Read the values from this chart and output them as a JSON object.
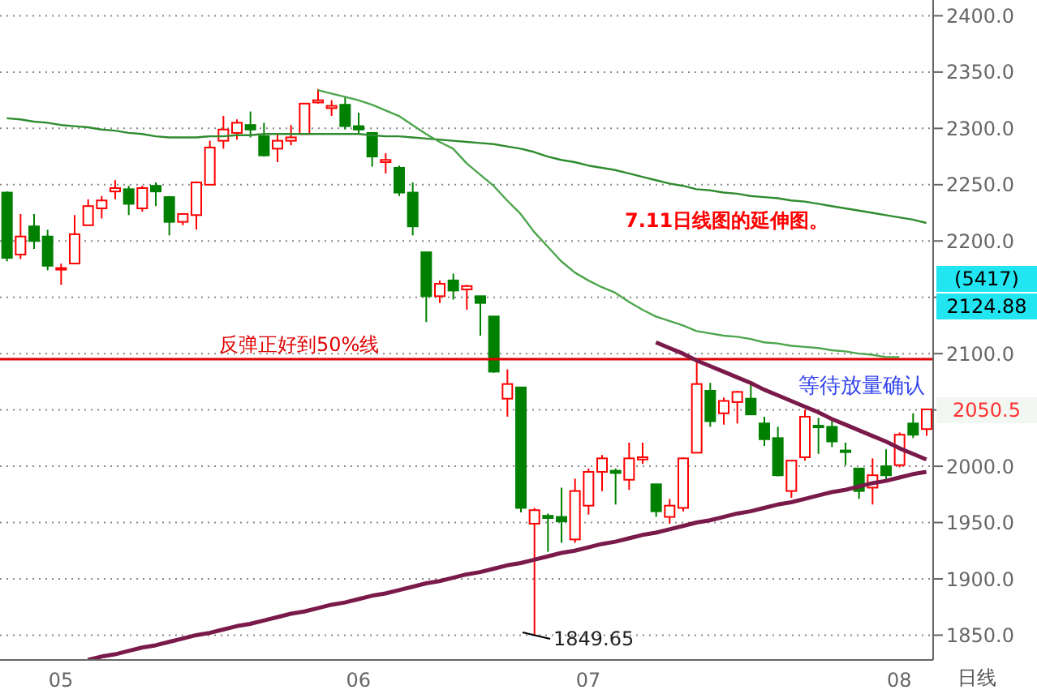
{
  "chart_data": {
    "type": "candlestick",
    "categories": [
      null,
      null,
      null,
      null,
      "05",
      null,
      null,
      null,
      null,
      null,
      null,
      null,
      null,
      null,
      null,
      null,
      null,
      null,
      null,
      null,
      null,
      null,
      null,
      null,
      null,
      null,
      "06",
      null,
      null,
      null,
      null,
      null,
      null,
      null,
      null,
      null,
      null,
      null,
      null,
      null,
      null,
      null,
      null,
      "07",
      null,
      null,
      null,
      null,
      null,
      null,
      null,
      null,
      null,
      null,
      null,
      null,
      null,
      null,
      null,
      null,
      null,
      null,
      null,
      null,
      null,
      null,
      "08",
      null,
      null
    ],
    "ohlc": [
      [
        2243,
        2244,
        2182,
        2185
      ],
      [
        2188,
        2224,
        2184,
        2204
      ],
      [
        2213,
        2224,
        2193,
        2200
      ],
      [
        2204,
        2210,
        2174,
        2178
      ],
      [
        2175,
        2180,
        2161,
        2176
      ],
      [
        2180,
        2223,
        2180,
        2206
      ],
      [
        2214,
        2237,
        2214,
        2231
      ],
      [
        2229,
        2240,
        2220,
        2236
      ],
      [
        2244,
        2254,
        2237,
        2247
      ],
      [
        2246,
        2249,
        2223,
        2233
      ],
      [
        2229,
        2249,
        2226,
        2247
      ],
      [
        2249,
        2252,
        2231,
        2244
      ],
      [
        2239,
        2240,
        2205,
        2217
      ],
      [
        2217,
        2224,
        2214,
        2224
      ],
      [
        2223,
        2253,
        2210,
        2252
      ],
      [
        2250,
        2289,
        2250,
        2283
      ],
      [
        2289,
        2311,
        2282,
        2299
      ],
      [
        2296,
        2308,
        2290,
        2305
      ],
      [
        2303,
        2315,
        2292,
        2299
      ],
      [
        2293,
        2305,
        2275,
        2276
      ],
      [
        2282,
        2295,
        2270,
        2289
      ],
      [
        2289,
        2303,
        2285,
        2292
      ],
      [
        2295,
        2322,
        2295,
        2322
      ],
      [
        2323,
        2335,
        2322,
        2325
      ],
      [
        2318,
        2325,
        2311,
        2320
      ],
      [
        2321,
        2328,
        2299,
        2302
      ],
      [
        2302,
        2314,
        2295,
        2299
      ],
      [
        2296,
        2296,
        2266,
        2275
      ],
      [
        2270,
        2278,
        2260,
        2272
      ],
      [
        2265,
        2267,
        2240,
        2243
      ],
      [
        2243,
        2252,
        2205,
        2213
      ],
      [
        2190,
        2190,
        2128,
        2151
      ],
      [
        2151,
        2165,
        2145,
        2162
      ],
      [
        2165,
        2171,
        2148,
        2156
      ],
      [
        2157,
        2161,
        2139,
        2160
      ],
      [
        2151,
        2151,
        2116,
        2145
      ],
      [
        2133,
        2133,
        2083,
        2084
      ],
      [
        2060,
        2086,
        2044,
        2073
      ],
      [
        2070,
        2070,
        1959,
        1963
      ],
      [
        1949,
        1963,
        1849.65,
        1961
      ],
      [
        1956,
        1958,
        1924,
        1954
      ],
      [
        1955,
        1981,
        1932,
        1951
      ],
      [
        1935,
        1989,
        1932,
        1978
      ],
      [
        1965,
        1998,
        1957,
        1995
      ],
      [
        1995,
        2010,
        1978,
        2007
      ],
      [
        1996,
        1998,
        1966,
        1994
      ],
      [
        1988,
        2021,
        1979,
        2007
      ],
      [
        2006,
        2021,
        2002,
        2008
      ],
      [
        1984,
        1984,
        1955,
        1960
      ],
      [
        1955,
        1971,
        1949,
        1965
      ],
      [
        1963,
        2008,
        1960,
        2007
      ],
      [
        2012,
        2095,
        2012,
        2073
      ],
      [
        2067,
        2074,
        2035,
        2040
      ],
      [
        2047,
        2061,
        2037,
        2058
      ],
      [
        2057,
        2067,
        2038,
        2066
      ],
      [
        2060,
        2073,
        2046,
        2046
      ],
      [
        2038,
        2044,
        2018,
        2024
      ],
      [
        2025,
        2035,
        1991,
        1992
      ],
      [
        1978,
        2005,
        1972,
        2005
      ],
      [
        2008,
        2050,
        2005,
        2044
      ],
      [
        2036,
        2043,
        2011,
        2035
      ],
      [
        2035,
        2041,
        2017,
        2022
      ],
      [
        2014,
        2021,
        2001,
        2013
      ],
      [
        1998,
        1998,
        1971,
        1978
      ],
      [
        1981,
        2007,
        1966,
        1992
      ],
      [
        2000,
        2015,
        1988,
        1992
      ],
      [
        2001,
        2030,
        1999,
        2028
      ],
      [
        2038,
        2047,
        2025,
        2028
      ],
      [
        2033,
        2050.5,
        2027,
        2050.5
      ]
    ],
    "series": [
      {
        "type": "line",
        "color": "#2e8b2e",
        "values": [
          2309,
          2308,
          2306,
          2305,
          2303,
          2302,
          2301,
          2299,
          2298,
          2296,
          2295,
          2293,
          2292,
          2292,
          2292,
          2293,
          2293,
          2294,
          2294,
          2295,
          2295,
          2295,
          2295,
          2295,
          2295,
          2295,
          2295,
          2294,
          2293,
          2293,
          2292,
          2291,
          2290,
          2289,
          2288,
          2287,
          2286,
          2284,
          2282,
          2279,
          2275,
          2272,
          2270,
          2267,
          2265,
          2263,
          2260,
          2257,
          2254,
          2251,
          2249,
          2246,
          2245,
          2243,
          2242,
          2240,
          2239,
          2238,
          2236,
          2235,
          2233,
          2231,
          2229,
          2227,
          2225,
          2223,
          2221,
          2219,
          2216
        ]
      },
      {
        "type": "line",
        "color": "#4ca64c",
        "values": [
          null,
          null,
          null,
          null,
          null,
          null,
          null,
          null,
          null,
          null,
          null,
          null,
          null,
          null,
          null,
          null,
          null,
          null,
          null,
          null,
          null,
          null,
          null,
          2334,
          2331,
          2328,
          2325,
          2321,
          2316,
          2311,
          2303,
          2295,
          2288,
          2282,
          2269,
          2259,
          2249,
          2236,
          2224,
          2208,
          2195,
          2182,
          2172,
          2165,
          2159,
          2154,
          2146,
          2139,
          2133,
          2129,
          2125,
          2120,
          2118,
          2116,
          2115,
          2113,
          2110,
          2109,
          2107,
          2106,
          2105,
          2103,
          2102,
          2100,
          2099,
          2097,
          2097,
          null,
          null
        ]
      },
      {
        "type": "line",
        "color": "#7a1a4a",
        "values": [
          null,
          null,
          null,
          null,
          null,
          null,
          1828,
          1831,
          1833,
          1836,
          1839,
          1841,
          1844,
          1847,
          1850,
          1852,
          1855,
          1858,
          1860,
          1863,
          1866,
          1869,
          1871,
          1874,
          1877,
          1879,
          1882,
          1885,
          1887,
          1890,
          1893,
          1896,
          1898,
          1901,
          1904,
          1906,
          1909,
          1912,
          1914,
          1917,
          1920,
          1923,
          1925,
          1928,
          1931,
          1933,
          1936,
          1939,
          1941,
          1944,
          1947,
          1950,
          1952,
          1955,
          1958,
          1960,
          1963,
          1966,
          1968,
          1971,
          1974,
          1977,
          1979,
          1982,
          1985,
          1987,
          1990,
          1993,
          1995
        ]
      },
      {
        "type": "line",
        "color": "#7a1a4a",
        "values": [
          null,
          null,
          null,
          null,
          null,
          null,
          null,
          null,
          null,
          null,
          null,
          null,
          null,
          null,
          null,
          null,
          null,
          null,
          null,
          null,
          null,
          null,
          null,
          null,
          null,
          null,
          null,
          null,
          null,
          null,
          null,
          null,
          null,
          null,
          null,
          null,
          null,
          null,
          null,
          null,
          null,
          null,
          null,
          null,
          null,
          null,
          null,
          null,
          2110,
          2105,
          2100,
          2094,
          2089,
          2084,
          2079,
          2074,
          2068,
          2063,
          2058,
          2053,
          2048,
          2042,
          2037,
          2032,
          2027,
          2022,
          2016,
          2011,
          2006
        ]
      }
    ],
    "ylim": [
      1828,
      2414
    ],
    "yticks": [
      {
        "value": 1850,
        "label": "1850.0"
      },
      {
        "value": 1900,
        "label": "1900.0"
      },
      {
        "value": 1950,
        "label": "1950.0"
      },
      {
        "value": 2000,
        "label": "2000.0"
      },
      {
        "value": 2050,
        "label": null
      },
      {
        "value": 2100,
        "label": "2100.0"
      },
      {
        "value": 2150,
        "label": null
      },
      {
        "value": 2200,
        "label": "2200.0"
      },
      {
        "value": 2250,
        "label": "2250.0"
      },
      {
        "value": 2300,
        "label": "2300.0"
      },
      {
        "value": 2350,
        "label": "2350.0"
      },
      {
        "value": 2400,
        "label": "2400.0"
      }
    ],
    "grid": "y",
    "ref_lines": [
      {
        "axis": "y",
        "value": 2095,
        "label": "反弹正好到50%线",
        "color": "#e00000"
      }
    ],
    "annotations": [
      "7.11日线图的延伸图。",
      "等待放量确认",
      "1849.65",
      "(5417)",
      "2124.88",
      "2050.5",
      "日线"
    ]
  }
}
